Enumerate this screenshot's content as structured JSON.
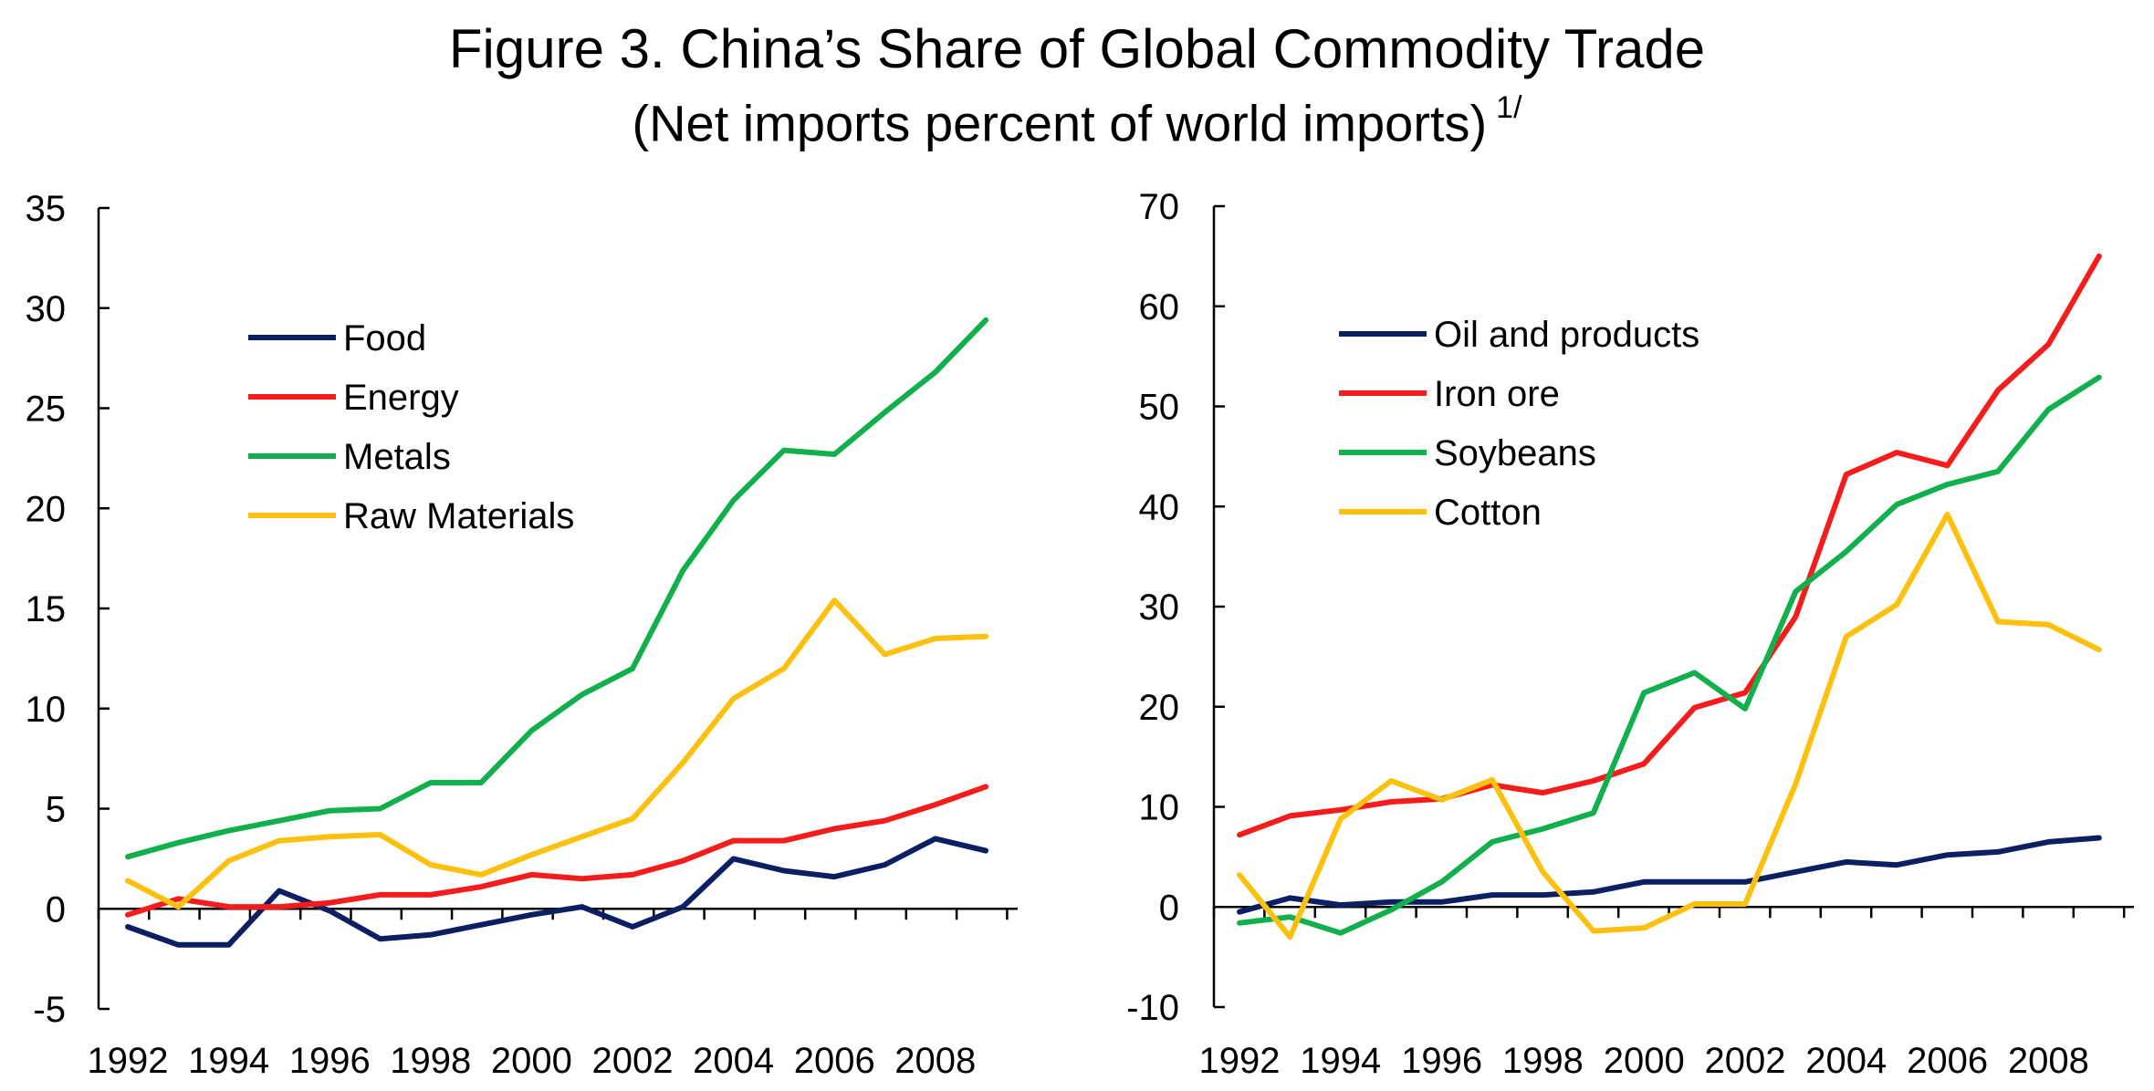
{
  "figure": {
    "title": "Figure 3. China’s Share of Global Commodity Trade",
    "subtitle": "(Net imports percent of world imports)",
    "subtitle_note": "1/"
  },
  "chart_data": [
    {
      "type": "line",
      "x": [
        1992,
        1993,
        1994,
        1995,
        1996,
        1997,
        1998,
        1999,
        2000,
        2001,
        2002,
        2003,
        2004,
        2005,
        2006,
        2007,
        2008,
        2009
      ],
      "x_tick_labels": [
        "1992",
        "1994",
        "1996",
        "1998",
        "2000",
        "2002",
        "2004",
        "2006",
        "2008"
      ],
      "ylim": [
        -5,
        35
      ],
      "y_ticks": [
        -5,
        0,
        5,
        10,
        15,
        20,
        25,
        30,
        35
      ],
      "grid": false,
      "legend_position": "upper-left",
      "series": [
        {
          "name": "Food",
          "color": "#0d1f63",
          "values": [
            -0.9,
            -1.8,
            -1.8,
            0.9,
            -0.1,
            -1.5,
            -1.3,
            -0.8,
            -0.3,
            0.1,
            -0.9,
            0.1,
            2.5,
            1.9,
            1.6,
            2.2,
            3.5,
            2.9
          ]
        },
        {
          "name": "Energy",
          "color": "#f51c1c",
          "values": [
            -0.3,
            0.5,
            0.1,
            0.1,
            0.3,
            0.7,
            0.7,
            1.1,
            1.7,
            1.5,
            1.7,
            2.4,
            3.4,
            3.4,
            4.0,
            4.4,
            5.2,
            6.1
          ]
        },
        {
          "name": "Metals",
          "color": "#12b04c",
          "values": [
            2.6,
            3.3,
            3.9,
            4.4,
            4.9,
            5.0,
            6.3,
            6.3,
            8.9,
            10.7,
            12.0,
            16.9,
            20.4,
            22.9,
            22.7,
            24.8,
            26.8,
            29.4
          ]
        },
        {
          "name": "Raw Materials",
          "color": "#fcc10e",
          "values": [
            1.4,
            0.1,
            2.4,
            3.4,
            3.6,
            3.7,
            2.2,
            1.7,
            2.7,
            3.6,
            4.5,
            7.3,
            10.5,
            12.0,
            15.4,
            12.7,
            13.5,
            13.6
          ]
        }
      ]
    },
    {
      "type": "line",
      "x": [
        1992,
        1993,
        1994,
        1995,
        1996,
        1997,
        1998,
        1999,
        2000,
        2001,
        2002,
        2003,
        2004,
        2005,
        2006,
        2007,
        2008,
        2009
      ],
      "x_tick_labels": [
        "1992",
        "1994",
        "1996",
        "1998",
        "2000",
        "2002",
        "2004",
        "2006",
        "2008"
      ],
      "ylim": [
        -10,
        70
      ],
      "y_ticks": [
        -10,
        0,
        10,
        20,
        30,
        40,
        50,
        60,
        70
      ],
      "grid": false,
      "legend_position": "upper-left",
      "series": [
        {
          "name": "Oil and products",
          "color": "#0d1f63",
          "values": [
            -0.5,
            0.9,
            0.2,
            0.5,
            0.5,
            1.2,
            1.2,
            1.5,
            2.5,
            2.5,
            2.5,
            3.5,
            4.5,
            4.2,
            5.2,
            5.5,
            6.5,
            6.9
          ]
        },
        {
          "name": "Iron ore",
          "color": "#f51c1c",
          "values": [
            7.2,
            9.1,
            9.7,
            10.5,
            10.8,
            12.2,
            11.4,
            12.6,
            14.3,
            19.9,
            21.4,
            29.0,
            43.2,
            45.4,
            44.1,
            51.6,
            56.2,
            65.0
          ]
        },
        {
          "name": "Soybeans",
          "color": "#12b04c",
          "values": [
            -1.6,
            -1.0,
            -2.6,
            -0.3,
            2.5,
            6.5,
            7.8,
            9.4,
            21.4,
            23.4,
            19.8,
            31.5,
            35.5,
            40.2,
            42.2,
            43.5,
            49.7,
            52.9
          ]
        },
        {
          "name": "Cotton",
          "color": "#fcc10e",
          "values": [
            3.2,
            -3.0,
            8.8,
            12.6,
            10.7,
            12.7,
            3.5,
            -2.4,
            -2.1,
            0.3,
            0.3,
            12.3,
            27.0,
            30.2,
            39.2,
            28.5,
            28.2,
            25.7
          ]
        }
      ]
    }
  ]
}
